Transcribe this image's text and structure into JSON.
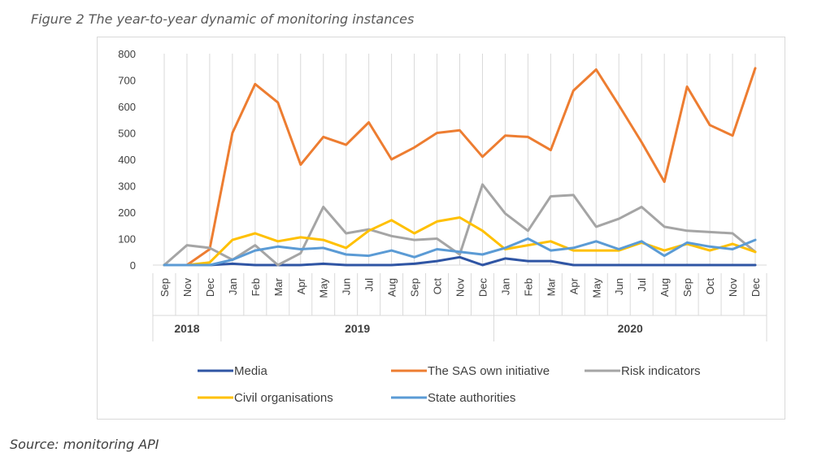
{
  "figure": {
    "caption": "Figure 2 The year-to-year dynamic of monitoring instances",
    "source": "Source: monitoring API"
  },
  "chart_data": {
    "type": "line",
    "title": "",
    "xlabel": "",
    "ylabel": "",
    "ylim": [
      0,
      800
    ],
    "yticks": [
      "800",
      "700",
      "600",
      "500",
      "400",
      "300",
      "200",
      "100",
      "0"
    ],
    "grid": "vertical lines per category",
    "legend_position": "bottom",
    "years": [
      {
        "label": "2018",
        "span": 3
      },
      {
        "label": "2019",
        "span": 12
      },
      {
        "label": "2020",
        "span": 12
      }
    ],
    "categories": [
      "Sep",
      "Nov",
      "Dec",
      "Jan",
      "Feb",
      "Mar",
      "Apr",
      "May",
      "Jun",
      "Jul",
      "Aug",
      "Sep",
      "Oct",
      "Nov",
      "Dec",
      "Jan",
      "Feb",
      "Mar",
      "Apr",
      "May",
      "Jun",
      "Jul",
      "Aug",
      "Sep",
      "Oct",
      "Nov",
      "Dec"
    ],
    "series": [
      {
        "name": "Media",
        "color": "#2f55a4",
        "values": [
          0,
          0,
          0,
          5,
          0,
          0,
          0,
          5,
          0,
          0,
          0,
          5,
          15,
          30,
          0,
          25,
          15,
          15,
          0,
          0,
          0,
          0,
          0,
          0,
          0,
          0,
          0
        ]
      },
      {
        "name": "The SAS own initiative",
        "color": "#ed7d31",
        "values": [
          0,
          0,
          60,
          500,
          685,
          615,
          380,
          485,
          455,
          540,
          400,
          445,
          500,
          510,
          410,
          490,
          485,
          435,
          660,
          740,
          605,
          465,
          315,
          675,
          530,
          490,
          745
        ]
      },
      {
        "name": "Risk indicators",
        "color": "#a5a5a5",
        "values": [
          0,
          75,
          65,
          20,
          75,
          0,
          45,
          220,
          120,
          135,
          110,
          95,
          100,
          40,
          305,
          195,
          130,
          260,
          265,
          145,
          175,
          220,
          145,
          130,
          125,
          120,
          50
        ]
      },
      {
        "name": "Civil organisations",
        "color": "#ffc000",
        "values": [
          0,
          0,
          10,
          95,
          120,
          90,
          105,
          95,
          65,
          130,
          170,
          120,
          165,
          180,
          130,
          60,
          75,
          90,
          55,
          55,
          55,
          85,
          55,
          80,
          55,
          80,
          50
        ]
      },
      {
        "name": "State authorities",
        "color": "#5b9bd5",
        "values": [
          0,
          0,
          0,
          20,
          55,
          70,
          60,
          65,
          40,
          35,
          55,
          30,
          60,
          50,
          40,
          65,
          100,
          55,
          65,
          90,
          60,
          90,
          35,
          85,
          70,
          60,
          95
        ]
      }
    ]
  }
}
